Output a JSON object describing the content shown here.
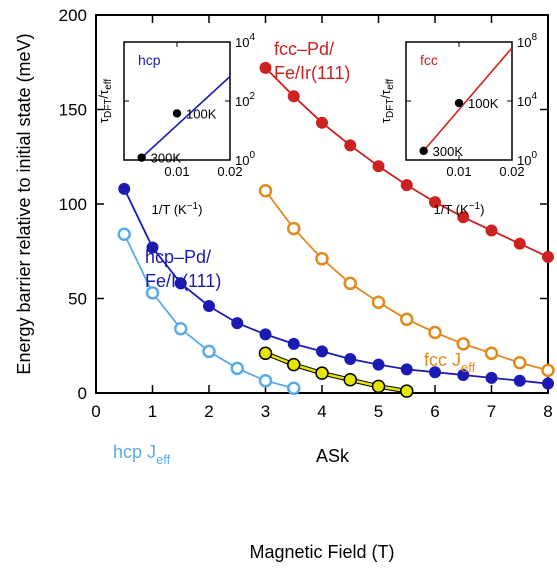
{
  "chart_data": {
    "type": "line",
    "xlabel": "Magnetic Field (T)",
    "ylabel": "Energy barrier relative to initial state (meV)",
    "xlim": [
      0,
      8
    ],
    "ylim": [
      0,
      200
    ],
    "xticks": [
      "0",
      "1",
      "2",
      "3",
      "4",
      "5",
      "6",
      "7",
      "8"
    ],
    "yticks": [
      "0",
      "50",
      "100",
      "150",
      "200"
    ],
    "grid": false,
    "series": [
      {
        "name": "fcc–Pd/ Fe/Ir(111)",
        "color": "#cc2222",
        "marker": "filled",
        "x": [
          3.0,
          3.5,
          4.0,
          4.5,
          5.0,
          5.5,
          6.0,
          6.5,
          7.0,
          7.5,
          8.0
        ],
        "y": [
          172,
          157,
          143,
          131,
          120,
          110,
          101,
          93,
          86,
          79,
          72
        ]
      },
      {
        "name": "hcp–Pd/ Fe/Ir(111)",
        "color": "#1b1bb4",
        "marker": "filled",
        "x": [
          0.5,
          1.0,
          1.5,
          2.0,
          2.5,
          3.0,
          3.5,
          4.0,
          4.5,
          5.0,
          5.5,
          6.0,
          6.5,
          7.0,
          7.5,
          8.0
        ],
        "y": [
          108,
          77,
          58,
          46,
          37,
          31,
          26,
          22,
          18,
          15,
          12.5,
          11,
          9.5,
          8,
          6.5,
          5
        ]
      },
      {
        "name": "fcc J_eff",
        "color": "#e08a1e",
        "marker": "open",
        "x": [
          3.0,
          3.5,
          4.0,
          4.5,
          5.0,
          5.5,
          6.0,
          6.5,
          7.0,
          7.5,
          8.0
        ],
        "y": [
          107,
          87,
          71,
          58,
          48,
          39,
          32,
          26,
          21,
          16,
          12
        ]
      },
      {
        "name": "hcp J_eff",
        "color": "#5aaaea",
        "marker": "open",
        "x": [
          0.5,
          1.0,
          1.5,
          2.0,
          2.5,
          3.0,
          3.5
        ],
        "y": [
          84,
          53,
          34,
          22,
          13,
          6.5,
          2.5
        ]
      },
      {
        "name": "ASk",
        "color": "#e6e600",
        "marker": "yellow",
        "x": [
          3.0,
          3.5,
          4.0,
          4.5,
          5.0,
          5.5
        ],
        "y": [
          21,
          15,
          10.5,
          7,
          3.5,
          1
        ]
      }
    ],
    "annotations": {
      "fcc_line1": "fcc–Pd/",
      "fcc_line2": "Fe/Ir(111)",
      "hcp_line1": "hcp–Pd/",
      "hcp_line2": "Fe/Ir(111)",
      "fcc_jeff": "fcc J",
      "hcp_jeff": "hcp J",
      "jeff_sub": "eff",
      "ask": "ASk"
    },
    "insets": [
      {
        "title": "hcp",
        "color": "#1b1bb4",
        "xlabel_main": "1/T (K",
        "xlabel_exp": "−1",
        "xlabel_end": ")",
        "ylabel_tau": "τ",
        "ylabel_dft": "DFT",
        "ylabel_eff": "eff",
        "xlim": [
          0,
          0.02
        ],
        "xticks": [
          "0.01",
          "0.02"
        ],
        "y_log_range": [
          0,
          4
        ],
        "yticks": [
          {
            "base": "10",
            "exp": "0"
          },
          {
            "base": "10",
            "exp": "2"
          },
          {
            "base": "10",
            "exp": "4"
          }
        ],
        "points": [
          {
            "label": "300K",
            "x": 0.00333,
            "log10y": 0.08
          },
          {
            "label": "100K",
            "x": 0.01,
            "log10y": 1.58
          }
        ],
        "line_end_log10y": 2.83
      },
      {
        "title": "fcc",
        "color": "#cc2222",
        "xlabel_main": "1/T (K",
        "xlabel_exp": "−1",
        "xlabel_end": ")",
        "ylabel_tau": "τ",
        "ylabel_dft": "DFT",
        "ylabel_eff": "eff",
        "xlim": [
          0,
          0.02
        ],
        "xticks": [
          "0.01",
          "0.02"
        ],
        "y_log_range": [
          0,
          8
        ],
        "yticks": [
          {
            "base": "10",
            "exp": "0"
          },
          {
            "base": "10",
            "exp": "4"
          },
          {
            "base": "10",
            "exp": "8"
          }
        ],
        "points": [
          {
            "label": "300K",
            "x": 0.00333,
            "log10y": 0.62
          },
          {
            "label": "100K",
            "x": 0.01,
            "log10y": 3.86
          }
        ],
        "line_end_log10y": 7.6
      }
    ]
  }
}
